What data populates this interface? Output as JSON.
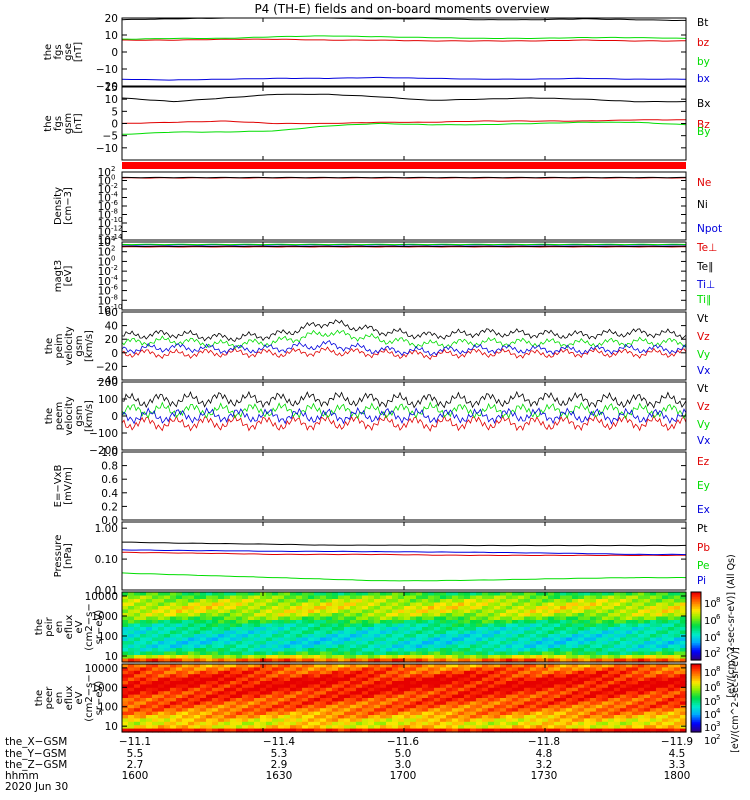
{
  "title": "P4 (TH-E) fields and on-board moments overview",
  "colors": {
    "black": "#000000",
    "red": "#e00000",
    "green": "#00dd00",
    "blue": "#0000dd"
  },
  "chart_data": [
    {
      "type": "line",
      "ylabel": [
        "the",
        "fgs",
        "gse",
        "[nT]"
      ],
      "ylim": [
        -20,
        20
      ],
      "ticks": [
        "20",
        "10",
        "0",
        "−10",
        "−20"
      ],
      "tick_values": [
        20,
        10,
        0,
        -10,
        -20
      ],
      "series": [
        {
          "name": "Bt",
          "color": "#000000",
          "y": [
            19,
            19.5,
            20,
            20.5,
            20,
            19.5,
            19.5,
            19,
            19,
            19.5,
            19,
            18.5
          ]
        },
        {
          "name": "bz",
          "color": "#e00000",
          "y": [
            7,
            7,
            7.5,
            7.5,
            7,
            7,
            6.5,
            6.5,
            6.5,
            7,
            6.5,
            6.5
          ]
        },
        {
          "name": "by",
          "color": "#00dd00",
          "y": [
            7.5,
            8,
            8,
            9,
            9.5,
            9,
            8.5,
            8,
            8,
            8.5,
            8.5,
            8
          ]
        },
        {
          "name": "bx",
          "color": "#0000dd",
          "y": [
            -16,
            -16.5,
            -16,
            -15.5,
            -15.5,
            -15,
            -15.5,
            -16,
            -16,
            -15.5,
            -16,
            -16
          ]
        }
      ]
    },
    {
      "type": "line",
      "ylabel": [
        "the",
        "fgs",
        "gsm",
        "[nT]"
      ],
      "ylim": [
        -15,
        15
      ],
      "ticks": [
        "15",
        "10",
        "5",
        "0",
        "−5",
        "−10"
      ],
      "tick_values": [
        15,
        10,
        5,
        0,
        -5,
        -10
      ],
      "series": [
        {
          "name": "Bx",
          "color": "#000000",
          "y": [
            10.5,
            9,
            10.5,
            12,
            12,
            11,
            9.5,
            10,
            10.5,
            10,
            9,
            9
          ]
        },
        {
          "name": "Bz",
          "color": "#e00000",
          "y": [
            0,
            0.5,
            1,
            0,
            0,
            0.5,
            0.5,
            1,
            1,
            1,
            1.5,
            1.5
          ]
        },
        {
          "name": "By",
          "color": "#00dd00",
          "y": [
            -4.5,
            -3.5,
            -3.5,
            -3,
            -1,
            0,
            -0.5,
            -0.5,
            0,
            0.5,
            0.5,
            -0.5
          ]
        }
      ]
    },
    {
      "type": "line",
      "log": true,
      "ylabel": [
        "Density",
        "[cm−3]"
      ],
      "ylim": [
        -14,
        2
      ],
      "ticks": [
        "10",
        "10",
        "10",
        "10",
        "10",
        "10",
        "10",
        "10",
        "10"
      ],
      "tick_exps": [
        "2",
        "0",
        "-2",
        "-4",
        "-6",
        "-8",
        "-10",
        "-12",
        "-14"
      ],
      "tick_values": [
        2,
        0,
        -2,
        -4,
        -6,
        -8,
        -10,
        -12,
        -14
      ],
      "series": [
        {
          "name": "Ne",
          "color": "#e00000",
          "y": [
            0.6,
            0.6,
            0.6,
            0.6,
            0.6,
            0.6,
            0.6,
            0.6,
            0.6,
            0.6,
            0.6,
            0.6
          ]
        },
        {
          "name": "Ni",
          "color": "#000000",
          "y": [
            0.7,
            0.7,
            0.7,
            0.7,
            0.7,
            0.7,
            0.7,
            0.7,
            0.7,
            0.7,
            0.7,
            0.7
          ]
        },
        {
          "name": "Npot",
          "color": "#0000dd",
          "y": [
            -14.5,
            -14.5,
            -14.5,
            -14.5,
            -14.5,
            -14.5,
            -14.5,
            -14.5,
            -14.5,
            -14.5,
            -14.5,
            -14.5
          ]
        }
      ]
    },
    {
      "type": "line",
      "log": true,
      "ylabel": [
        "magt3",
        "[eV]"
      ],
      "ylim": [
        -10,
        4
      ],
      "ticks": [
        "10",
        "10",
        "10",
        "10",
        "10",
        "10",
        "10",
        "10"
      ],
      "tick_exps": [
        "4",
        "2",
        "0",
        "-2",
        "-4",
        "-6",
        "-8",
        "-10"
      ],
      "tick_values": [
        4,
        2,
        0,
        -2,
        -4,
        -6,
        -8,
        -10
      ],
      "series": [
        {
          "name": "Te⊥",
          "color": "#e00000",
          "y": [
            3,
            3,
            3,
            3,
            3,
            3,
            3,
            3,
            3,
            3,
            3,
            3
          ]
        },
        {
          "name": "Te∥",
          "color": "#000000",
          "y": [
            3.1,
            3.1,
            3.1,
            3.1,
            3.1,
            3.1,
            3.1,
            3.1,
            3.1,
            3.1,
            3.1,
            3.1
          ]
        },
        {
          "name": "Ti⊥",
          "color": "#0000dd",
          "y": [
            3.4,
            3.4,
            3.4,
            3.4,
            3.4,
            3.4,
            3.4,
            3.4,
            3.4,
            3.4,
            3.4,
            3.4
          ]
        },
        {
          "name": "Ti∥",
          "color": "#00dd00",
          "y": [
            3.5,
            3.5,
            3.5,
            3.5,
            3.5,
            3.5,
            3.5,
            3.5,
            3.5,
            3.5,
            3.5,
            3.5
          ]
        }
      ]
    },
    {
      "type": "line",
      "ylabel": [
        "the",
        "peim",
        "velocity",
        "gsm",
        "[km/s]"
      ],
      "ylim": [
        -40,
        60
      ],
      "ticks": [
        "60",
        "40",
        "20",
        "0",
        "−20",
        "−40"
      ],
      "tick_values": [
        60,
        40,
        20,
        0,
        -20,
        -40
      ],
      "series": [
        {
          "name": "Vt",
          "color": "#000000",
          "y": [
            25,
            28,
            22,
            26,
            45,
            32,
            25,
            30,
            28,
            26,
            30,
            27
          ]
        },
        {
          "name": "Vz",
          "color": "#e00000",
          "y": [
            0,
            -2,
            0,
            -1,
            2,
            -1,
            -3,
            0,
            -2,
            0,
            -1,
            0
          ]
        },
        {
          "name": "Vy",
          "color": "#00dd00",
          "y": [
            15,
            18,
            12,
            16,
            30,
            20,
            12,
            16,
            15,
            14,
            16,
            15
          ]
        },
        {
          "name": "Vx",
          "color": "#0000dd",
          "y": [
            5,
            8,
            5,
            6,
            12,
            4,
            2,
            6,
            5,
            4,
            6,
            5
          ]
        }
      ]
    },
    {
      "type": "line",
      "ylabel": [
        "the",
        "peem",
        "velocity",
        "gsm",
        "[km/s]"
      ],
      "ylim": [
        -200,
        200
      ],
      "ticks": [
        "200",
        "100",
        "0",
        "−100",
        "−200"
      ],
      "tick_values": [
        200,
        100,
        0,
        -100,
        -200
      ],
      "series": [
        {
          "name": "Vt",
          "color": "#000000",
          "y": [
            90,
            95,
            100,
            95,
            100,
            95,
            90,
            95,
            100,
            95,
            90,
            95
          ]
        },
        {
          "name": "Vz",
          "color": "#e00000",
          "y": [
            -40,
            -45,
            -40,
            -45,
            -40,
            -40,
            -45,
            -40,
            -45,
            -40,
            -40,
            -45
          ]
        },
        {
          "name": "Vy",
          "color": "#00dd00",
          "y": [
            30,
            35,
            30,
            35,
            30,
            30,
            35,
            30,
            30,
            35,
            30,
            30
          ]
        },
        {
          "name": "Vx",
          "color": "#0000dd",
          "y": [
            0,
            0,
            5,
            0,
            0,
            5,
            0,
            0,
            5,
            0,
            0,
            0
          ]
        }
      ]
    },
    {
      "type": "line",
      "ylabel": [
        "E=−VxB",
        "[mV/m]"
      ],
      "ylim": [
        0,
        1
      ],
      "ticks": [
        "1.0",
        "0.8",
        "0.6",
        "0.4",
        "0.2",
        "0.0"
      ],
      "tick_values": [
        1,
        0.8,
        0.6,
        0.4,
        0.2,
        0
      ],
      "series": [
        {
          "name": "Ez",
          "color": "#e00000",
          "y": []
        },
        {
          "name": "Ey",
          "color": "#00dd00",
          "y": []
        },
        {
          "name": "Ex",
          "color": "#0000dd",
          "y": []
        }
      ]
    },
    {
      "type": "line",
      "log": true,
      "ylabel": [
        "Pressure",
        "[nPa]"
      ],
      "ylim": [
        -2,
        0.2
      ],
      "ticks": [
        "1.00",
        "0.10",
        "0.01"
      ],
      "tick_values": [
        0,
        -1,
        -2
      ],
      "series": [
        {
          "name": "Pt",
          "color": "#000000",
          "y": [
            -0.45,
            -0.48,
            -0.5,
            -0.52,
            -0.55,
            -0.55,
            -0.55,
            -0.56,
            -0.56,
            -0.56,
            -0.56,
            -0.56
          ]
        },
        {
          "name": "Pb",
          "color": "#e00000",
          "y": [
            -0.78,
            -0.8,
            -0.82,
            -0.85,
            -0.85,
            -0.85,
            -0.87,
            -0.88,
            -0.88,
            -0.88,
            -0.88,
            -0.88
          ]
        },
        {
          "name": "Pe",
          "color": "#00dd00",
          "y": [
            -1.45,
            -1.5,
            -1.55,
            -1.6,
            -1.65,
            -1.7,
            -1.7,
            -1.68,
            -1.65,
            -1.62,
            -1.6,
            -1.6
          ]
        },
        {
          "name": "Pi",
          "color": "#0000dd",
          "y": [
            -0.7,
            -0.72,
            -0.73,
            -0.75,
            -0.75,
            -0.76,
            -0.77,
            -0.78,
            -0.8,
            -0.82,
            -0.85,
            -0.85
          ]
        }
      ]
    },
    {
      "type": "heatmap",
      "ylabel": [
        "the",
        "peir",
        "en",
        "eflux",
        "eV",
        "(cm2−s−",
        "sr−eV)"
      ],
      "ylim": [
        0.7,
        4.2
      ],
      "ticks": [
        "10000",
        "1000",
        "100",
        "10"
      ],
      "tick_values": [
        4,
        3,
        2,
        1
      ],
      "rows_top_to_bottom": [
        5.1,
        5.6,
        5.9,
        6.1,
        6.2,
        6.1,
        5.9,
        5.5,
        5.0,
        4.6,
        4.4,
        4.3,
        4.2,
        4.1,
        4.1,
        4.2,
        4.5,
        5.0,
        6.0,
        7.3
      ]
    },
    {
      "type": "heatmap",
      "ylabel": [
        "the",
        "peer",
        "en",
        "eflux",
        "eV",
        "(cm2−s−",
        "sr−eV)"
      ],
      "ylim": [
        0.7,
        4.2
      ],
      "ticks": [
        "10000",
        "1000",
        "100",
        "10"
      ],
      "tick_values": [
        4,
        3,
        2,
        1
      ],
      "rows_top_to_bottom": [
        7.0,
        7.3,
        7.5,
        7.7,
        7.9,
        7.95,
        7.9,
        7.8,
        7.7,
        7.6,
        7.5,
        7.4,
        7.3,
        7.2,
        7.0,
        6.8,
        6.5,
        6.3,
        6.5,
        8.0
      ]
    }
  ],
  "colorbar": {
    "label": "[eV/(cm^2-sec-sr-eV)] (All Qs)",
    "label2": "[eV/(cm^2-sec-sr-eV)]",
    "ticks_top": [
      "10",
      "10",
      "10",
      "10",
      "10"
    ],
    "ticks_top_exps": [
      "8",
      "6",
      "4",
      "2",
      "2"
    ],
    "ticks_bottom": [
      "10",
      "10",
      "10",
      "10",
      "10",
      "10"
    ],
    "ticks_bottom_exps": [
      "8",
      "6",
      "5",
      "4",
      "3",
      "2"
    ]
  },
  "xaxis": {
    "row_labels": [
      "the_X−GSM",
      "the_Y−GSM",
      "the_Z−GSM",
      "hhmm",
      "2020 Jun 30"
    ],
    "columns": [
      {
        "values": [
          "−11.1",
          "5.5",
          "2.7",
          "1600"
        ]
      },
      {
        "values": [
          "−11.4",
          "5.3",
          "2.9",
          "1630"
        ]
      },
      {
        "values": [
          "−11.6",
          "5.0",
          "3.0",
          "1700"
        ]
      },
      {
        "values": [
          "−11.8",
          "4.8",
          "3.2",
          "1730"
        ]
      },
      {
        "values": [
          "−11.9",
          "4.5",
          "3.3",
          "1800"
        ]
      }
    ]
  }
}
